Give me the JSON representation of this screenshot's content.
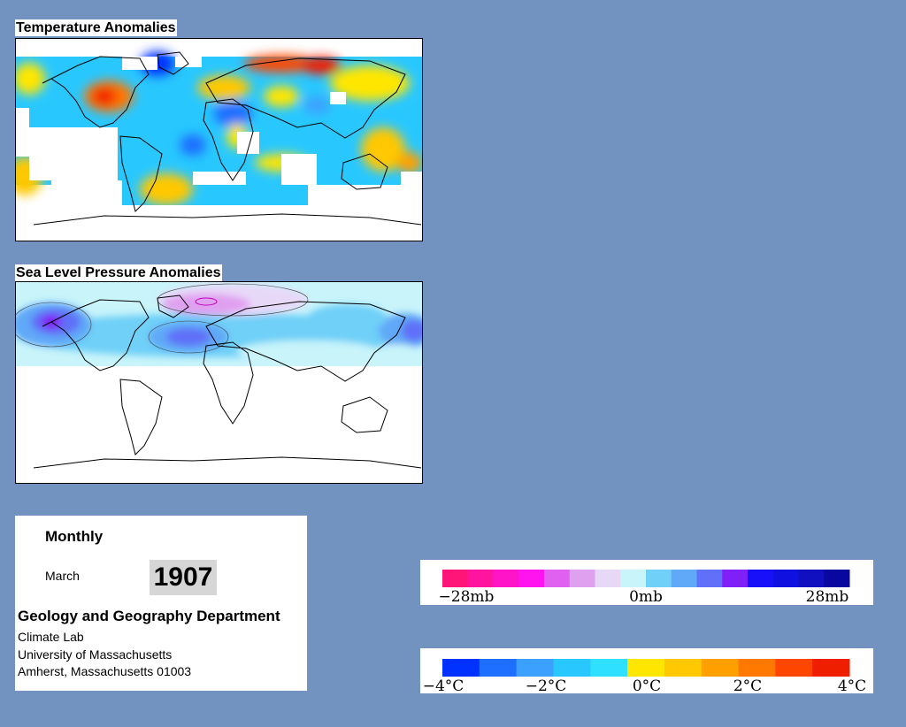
{
  "temperature_map": {
    "title": "Temperature Anomalies"
  },
  "pressure_map": {
    "title": "Sea Level Pressure Anomalies"
  },
  "info": {
    "frequency": "Monthly",
    "month": "March",
    "year": "1907",
    "department": "Geology and Geography Department",
    "lab": "Climate Lab",
    "university": "University of Massachusetts",
    "address": "Amherst, Massachusetts 01003"
  },
  "pressure_legend": {
    "labels": [
      "−28mb",
      "0mb",
      "28mb"
    ],
    "colors": [
      "#ff1478",
      "#ff14a0",
      "#ff14c8",
      "#ff14f0",
      "#e060f0",
      "#e0a0f0",
      "#e8d8f8",
      "#c8f4fa",
      "#70d0f8",
      "#60a8f8",
      "#6070f8",
      "#8020f8",
      "#1810f8",
      "#1010e0",
      "#1010c0",
      "#0808a0"
    ]
  },
  "temperature_legend": {
    "labels": [
      "−4°C",
      "−2°C",
      "0°C",
      "2°C",
      "4°C"
    ],
    "colors": [
      "#0032ff",
      "#1e6eff",
      "#3ca0ff",
      "#28c8ff",
      "#30e0ff",
      "#ffe600",
      "#ffc800",
      "#ffa000",
      "#ff7800",
      "#ff4600",
      "#f01e00"
    ]
  },
  "colors": {
    "background": "#7293bf"
  }
}
